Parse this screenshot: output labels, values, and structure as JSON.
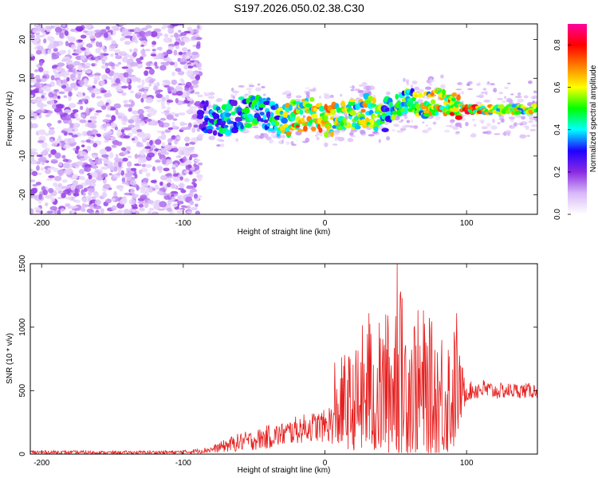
{
  "figure": {
    "title": "S197.2026.050.02.38.C30"
  },
  "chart_data": [
    {
      "type": "heatmap",
      "name": "spectrogram",
      "xlabel": "Height of straight line (km)",
      "ylabel": "Frequency (Hz)",
      "xlim": [
        -208,
        150
      ],
      "ylim": [
        -25,
        24
      ],
      "xticks": [
        "-200",
        "-100",
        "0",
        "100"
      ],
      "xtick_values": [
        -200,
        -100,
        0,
        100
      ],
      "yticks": [
        "-20",
        "-10",
        "0",
        "10",
        "20"
      ],
      "ytick_values": [
        -20,
        -10,
        0,
        10,
        20
      ],
      "colorbar": {
        "label": "Normalized spectral amplitude",
        "range": [
          0,
          0.9
        ],
        "ticks": [
          "0.0",
          "0.2",
          "0.4",
          "0.6",
          "0.8"
        ],
        "tick_values": [
          0,
          0.2,
          0.4,
          0.6,
          0.8
        ],
        "colors": [
          "#ffffff",
          "#d8b8f8",
          "#8a2be2",
          "#2000ff",
          "#00ffff",
          "#00ff00",
          "#ffff00",
          "#ff8000",
          "#ff0000",
          "#ff00a0"
        ]
      },
      "regions": [
        {
          "x": [
            -208,
            -88
          ],
          "freq": [
            -25,
            24
          ],
          "amplitude": [
            0.05,
            0.2
          ],
          "description": "broadband noise"
        },
        {
          "x": [
            -88,
            45
          ],
          "freq_center": 0,
          "freq_spread": 4,
          "amplitude": [
            0.2,
            0.7
          ]
        },
        {
          "x": [
            45,
            150
          ],
          "freq_center": 2,
          "freq_spread": 2,
          "amplitude": [
            0.3,
            0.9
          ]
        }
      ],
      "ridge": {
        "x": [
          -88,
          -75,
          -60,
          -50,
          -40,
          -30,
          -20,
          -10,
          0,
          10,
          20,
          30,
          40,
          45,
          50,
          60,
          70,
          80,
          90,
          100,
          110,
          120,
          130,
          140,
          150
        ],
        "freq": [
          1,
          -1,
          1,
          2,
          1,
          -1,
          0,
          1,
          -1,
          0,
          1,
          2,
          0,
          1,
          3,
          4,
          3,
          4,
          3,
          2,
          2,
          2,
          2,
          2,
          2
        ],
        "amplitude": [
          0.3,
          0.45,
          0.4,
          0.5,
          0.4,
          0.55,
          0.7,
          0.6,
          0.75,
          0.6,
          0.55,
          0.65,
          0.5,
          0.4,
          0.55,
          0.5,
          0.6,
          0.65,
          0.7,
          0.75,
          0.7,
          0.6,
          0.65,
          0.6,
          0.6
        ]
      }
    },
    {
      "type": "line",
      "name": "snr",
      "xlabel": "Height of straight line (km)",
      "ylabel": "SNR (10 * v/v)",
      "xlim": [
        -208,
        150
      ],
      "ylim": [
        0,
        1500
      ],
      "xticks": [
        "-200",
        "-100",
        "0",
        "100"
      ],
      "xtick_values": [
        -200,
        -100,
        0,
        100
      ],
      "yticks": [
        "0",
        "500",
        "1000",
        "1500"
      ],
      "ytick_values": [
        0,
        500,
        1000,
        1500
      ],
      "color": "#e62020",
      "envelope": {
        "x": [
          -208,
          -150,
          -100,
          -80,
          -70,
          -60,
          -50,
          -40,
          -30,
          -20,
          -10,
          0,
          5,
          10,
          15,
          20,
          25,
          30,
          35,
          40,
          45,
          50,
          55,
          60,
          65,
          70,
          75,
          80,
          85,
          90,
          95,
          100,
          110,
          120,
          130,
          140,
          150
        ],
        "min": [
          0,
          0,
          0,
          10,
          15,
          20,
          30,
          40,
          60,
          80,
          100,
          90,
          80,
          60,
          40,
          30,
          20,
          10,
          5,
          5,
          5,
          5,
          5,
          5,
          5,
          5,
          5,
          5,
          5,
          5,
          200,
          420,
          430,
          430,
          440,
          440,
          440
        ],
        "max": [
          30,
          25,
          30,
          60,
          120,
          170,
          190,
          230,
          250,
          300,
          330,
          350,
          420,
          720,
          860,
          760,
          1000,
          1110,
          1050,
          1060,
          1150,
          1500,
          1250,
          1280,
          1150,
          1160,
          1050,
          1100,
          1020,
          1100,
          800,
          560,
          600,
          560,
          560,
          560,
          560
        ]
      },
      "peaks": [
        {
          "x": 7,
          "y": 720
        },
        {
          "x": 31,
          "y": 1110
        },
        {
          "x": 43,
          "y": 1100
        },
        {
          "x": 51,
          "y": 1500
        },
        {
          "x": 53,
          "y": 1250
        },
        {
          "x": 93,
          "y": 1110
        }
      ]
    }
  ]
}
